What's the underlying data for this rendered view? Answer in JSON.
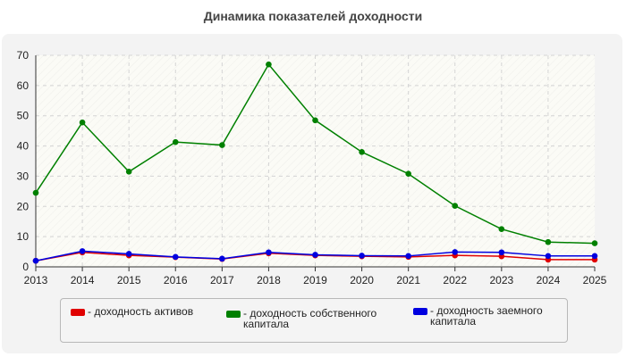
{
  "chart_data": {
    "type": "line",
    "title": "Динамика показателей доходности",
    "xlabel": "",
    "ylabel": "",
    "categories": [
      "2013",
      "2014",
      "2015",
      "2016",
      "2017",
      "2018",
      "2019",
      "2020",
      "2021",
      "2022",
      "2023",
      "2024",
      "2025"
    ],
    "ylim": [
      0,
      70
    ],
    "yticks": [
      0,
      10,
      20,
      30,
      40,
      50,
      60,
      70
    ],
    "grid": true,
    "legend_position": "bottom",
    "series": [
      {
        "name": "- доходность активов",
        "color": "#e00000",
        "values": [
          2.0,
          4.8,
          3.8,
          3.2,
          2.6,
          4.5,
          3.8,
          3.5,
          3.3,
          3.8,
          3.5,
          2.4,
          2.4
        ]
      },
      {
        "name": "- доходность собственного капитала",
        "color": "#008000",
        "values": [
          24.5,
          47.8,
          31.5,
          41.3,
          40.3,
          67.0,
          48.5,
          38.0,
          30.8,
          20.2,
          12.5,
          8.2,
          7.8
        ]
      },
      {
        "name": "- доходность заемного капитала",
        "color": "#0000e0",
        "values": [
          2.0,
          5.2,
          4.3,
          3.3,
          2.7,
          4.8,
          4.0,
          3.7,
          3.6,
          4.9,
          4.8,
          3.6,
          3.6
        ]
      }
    ]
  },
  "legend": {
    "items": [
      {
        "label": "- доходность активов",
        "color": "#e00000"
      },
      {
        "label": "- доходность собственного\nкапитала",
        "color": "#008000"
      },
      {
        "label": "- доходность заемного\nкапитала",
        "color": "#0000e0"
      }
    ]
  }
}
